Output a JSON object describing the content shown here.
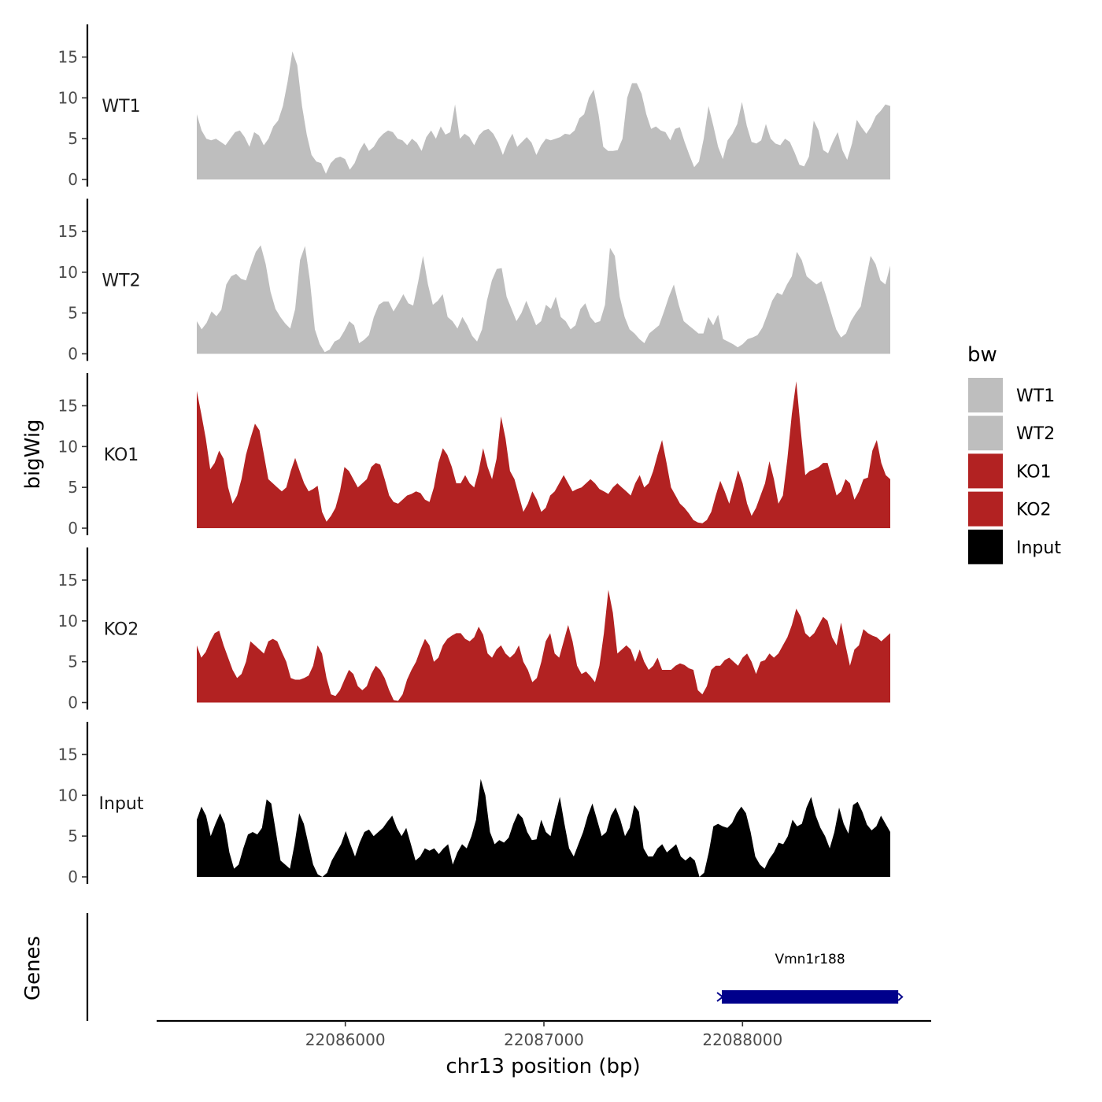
{
  "chart_data": {
    "type": "area",
    "chromosome": "chr13",
    "xlabel": "chr13 position (bp)",
    "ylabel": "bigWig",
    "gene_panel_label": "Genes",
    "xlim": [
      22085050,
      22088950
    ],
    "x_range_data": [
      22085500,
      22088800
    ],
    "x_ticks": [
      22086000,
      22087000,
      22088000
    ],
    "x_tick_labels": [
      "22086000",
      "22087000",
      "22088000"
    ],
    "ylim": [
      0,
      19
    ],
    "y_ticks": [
      0,
      5,
      10,
      15
    ],
    "y_tick_labels": [
      "0",
      "5",
      "10",
      "15"
    ],
    "legend": {
      "title": "bw",
      "position": "right"
    },
    "colors": {
      "WT1": "#bebebe",
      "WT2": "#bebebe",
      "KO1": "#b22222",
      "KO2": "#b22222",
      "Input": "#000000"
    },
    "series": [
      {
        "name": "WT1",
        "label": "WT1",
        "color": "#bebebe",
        "values": [
          8,
          6,
          5,
          4.8,
          5,
          4.6,
          4.2,
          5,
          5.8,
          6,
          5.2,
          4,
          5.8,
          5.4,
          4.2,
          5,
          6.5,
          7.2,
          9,
          12,
          15.7,
          14,
          9,
          5.5,
          3,
          2.2,
          2,
          0.7,
          2,
          2.6,
          2.8,
          2.5,
          1.2,
          2,
          3.5,
          4.5,
          3.5,
          4,
          5,
          5.6,
          6,
          5.8,
          5,
          4.8,
          4.2,
          5,
          4.5,
          3.5,
          5.2,
          6,
          5,
          6.5,
          5.5,
          5.8,
          9.2,
          5,
          5.6,
          5.2,
          4.2,
          5.4,
          6,
          6.2,
          5.6,
          4.5,
          3,
          4.5,
          5.6,
          4,
          4.6,
          5.2,
          4.5,
          3,
          4.2,
          5,
          4.8,
          5,
          5.2,
          5.6,
          5.5,
          6,
          7.5,
          8,
          10,
          11,
          8,
          4,
          3.5,
          3.5,
          3.6,
          5,
          10,
          11.8,
          11.8,
          10.5,
          8,
          6.2,
          6.5,
          6,
          5.8,
          4.8,
          6.2,
          6.4,
          4.6,
          3,
          1.5,
          2.2,
          5,
          9,
          6.6,
          4,
          2.5,
          4.8,
          5.6,
          6.8,
          9.5,
          6.6,
          4.6,
          4.4,
          4.8,
          6.8,
          5,
          4.4,
          4.2,
          5,
          4.6,
          3.3,
          1.8,
          1.6,
          2.8,
          7.2,
          6,
          3.6,
          3.2,
          4.6,
          5.8,
          3.6,
          2.4,
          4.4,
          7.3,
          6.4,
          5.6,
          6.5,
          7.8,
          8.4,
          9.2,
          9
        ]
      },
      {
        "name": "WT2",
        "label": "WT2",
        "color": "#bebebe",
        "values": [
          4,
          3,
          3.8,
          5.2,
          4.6,
          5.4,
          8.5,
          9.5,
          9.8,
          9.2,
          9,
          10.8,
          12.5,
          13.3,
          11,
          7.6,
          5.5,
          4.5,
          3.7,
          3.1,
          5.5,
          11.5,
          13.2,
          9,
          3,
          1.2,
          0.2,
          0.5,
          1.5,
          1.8,
          2.8,
          4,
          3.5,
          1.3,
          1.7,
          2.3,
          4.5,
          6,
          6.4,
          6.4,
          5.2,
          6.2,
          7.3,
          6.2,
          5.9,
          8.8,
          12,
          8.5,
          6,
          6.5,
          7.3,
          4.5,
          4,
          3.1,
          4.5,
          3.5,
          2.2,
          1.5,
          3,
          6.5,
          9,
          10.4,
          10.5,
          7,
          5.5,
          4,
          5,
          6.5,
          5,
          3.5,
          4,
          6,
          5.5,
          7,
          4.5,
          4,
          3,
          3.5,
          5.5,
          6.2,
          4.5,
          3.8,
          4,
          6,
          13,
          12,
          7,
          4.5,
          3,
          2.5,
          1.8,
          1.3,
          2.5,
          3,
          3.5,
          5.2,
          7,
          8.5,
          6,
          4,
          3.5,
          3,
          2.5,
          2.5,
          4.5,
          3.5,
          4.8,
          1.8,
          1.5,
          1.2,
          0.8,
          1.2,
          1.8,
          2,
          2.3,
          3.2,
          4.8,
          6.5,
          7.5,
          7.2,
          8.5,
          9.5,
          12.5,
          11.5,
          9.5,
          9,
          8.5,
          8.9,
          7,
          5,
          3,
          2,
          2.5,
          4,
          5,
          5.8,
          9,
          12,
          11,
          9,
          8.5,
          10.8
        ]
      },
      {
        "name": "KO1",
        "label": "KO1",
        "color": "#b22222",
        "values": [
          16.8,
          14,
          11,
          7.2,
          8,
          9.5,
          8.5,
          5,
          3,
          4,
          6,
          9,
          11,
          12.8,
          12,
          9,
          6,
          5.5,
          5,
          4.5,
          5,
          7,
          8.6,
          7,
          5.5,
          4.5,
          4.8,
          5.2,
          2,
          0.8,
          1.5,
          2.5,
          4.5,
          7.5,
          7,
          6,
          5,
          5.5,
          6,
          7.5,
          8,
          7.8,
          6,
          4,
          3.2,
          3,
          3.5,
          4,
          4.2,
          4.5,
          4.3,
          3.5,
          3.2,
          5,
          8,
          9.8,
          9,
          7.5,
          5.5,
          5.5,
          6.5,
          5.5,
          5,
          7,
          9.8,
          7.5,
          6,
          8.5,
          13.7,
          11,
          7,
          6,
          4,
          2,
          3,
          4.5,
          3.5,
          2,
          2.5,
          4,
          4.5,
          5.5,
          6.5,
          5.5,
          4.5,
          4.8,
          5,
          5.5,
          6,
          5.5,
          4.8,
          4.5,
          4.2,
          5,
          5.5,
          5,
          4.5,
          4,
          5.5,
          6.5,
          5,
          5.5,
          7,
          9,
          10.8,
          8,
          5,
          4,
          3,
          2.5,
          1.8,
          1,
          0.7,
          0.6,
          1,
          2,
          4,
          5.8,
          4.5,
          3,
          5,
          7.1,
          5.5,
          3,
          1.5,
          2.5,
          4,
          5.5,
          8.2,
          6,
          3,
          4,
          8.5,
          14,
          18,
          12,
          6.5,
          7,
          7.2,
          7.5,
          8,
          8,
          6,
          4,
          4.5,
          6,
          5.5,
          3.5,
          4.5,
          6,
          6.2,
          9.5,
          10.8,
          8,
          6.5,
          6
        ]
      },
      {
        "name": "KO2",
        "label": "KO2",
        "color": "#b22222",
        "values": [
          7,
          5.5,
          6.2,
          7.5,
          8.5,
          8.8,
          7,
          5.5,
          4,
          3,
          3.5,
          5,
          7.5,
          7,
          6.5,
          6,
          7.5,
          7.8,
          7.5,
          6.2,
          5,
          3,
          2.8,
          2.8,
          3,
          3.3,
          4.5,
          7,
          6,
          3,
          1,
          0.8,
          1.5,
          2.8,
          4,
          3.5,
          2,
          1.5,
          2,
          3.5,
          4.5,
          4,
          3,
          1.5,
          0.3,
          0.2,
          1,
          2.8,
          4,
          5,
          6.5,
          7.8,
          7,
          5,
          5.5,
          7,
          7.8,
          8.2,
          8.5,
          8.5,
          7.8,
          7.5,
          8,
          9.3,
          8.3,
          6,
          5.5,
          6.5,
          7,
          6,
          5.5,
          6,
          7,
          5,
          4,
          2.5,
          3,
          5,
          7.5,
          8.5,
          6,
          5.5,
          7.5,
          9.5,
          7.5,
          4.5,
          3.5,
          3.8,
          3.2,
          2.5,
          4.5,
          8.5,
          13.8,
          11,
          6,
          6.5,
          7,
          6.5,
          5,
          6.5,
          5,
          4,
          4.5,
          5.5,
          4,
          4,
          4,
          4.5,
          4.8,
          4.6,
          4.2,
          4,
          1.5,
          1,
          2,
          4,
          4.5,
          4.5,
          5.2,
          5.5,
          5,
          4.5,
          5.5,
          6,
          5,
          3.5,
          5,
          5.2,
          6,
          5.5,
          6,
          7,
          8,
          9.5,
          11.5,
          10.5,
          8.5,
          8,
          8.5,
          9.5,
          10.5,
          10,
          8,
          7,
          9.8,
          7,
          4.5,
          6.5,
          7,
          9,
          8.5,
          8.2,
          8,
          7.5,
          8,
          8.5
        ]
      },
      {
        "name": "Input",
        "label": "Input",
        "color": "#000000",
        "values": [
          7,
          8.6,
          7.5,
          5,
          6.5,
          7.8,
          6.5,
          3,
          1,
          1.5,
          3.5,
          5.2,
          5.5,
          5.2,
          6,
          9.5,
          9,
          5.5,
          2,
          1.5,
          1,
          4,
          7.8,
          6.5,
          4,
          1.5,
          0.3,
          0,
          0.5,
          2,
          3,
          4,
          5.6,
          4,
          2.5,
          4.2,
          5.5,
          5.8,
          5,
          5.5,
          6,
          6.8,
          7.5,
          6,
          5,
          6,
          4,
          2,
          2.5,
          3.5,
          3.2,
          3.5,
          2.8,
          3.5,
          4,
          1.5,
          3,
          4,
          3.5,
          5,
          7,
          12,
          10,
          5.5,
          4,
          4.5,
          4.2,
          4.8,
          6.5,
          7.8,
          7.2,
          5.5,
          4.5,
          4.6,
          7,
          5.5,
          5,
          7.5,
          9.8,
          6.5,
          3.5,
          2.5,
          4,
          5.5,
          7.5,
          9,
          7,
          5,
          5.5,
          7.5,
          8.5,
          7,
          5,
          6,
          8.8,
          8,
          3.5,
          2.5,
          2.5,
          3.5,
          4,
          3,
          3.5,
          4,
          2.5,
          2,
          2.5,
          2,
          0,
          0.5,
          3,
          6.2,
          6.5,
          6.2,
          6,
          6.6,
          7.8,
          8.6,
          7.8,
          5.5,
          2.5,
          1.5,
          1,
          2.2,
          3,
          4.2,
          4,
          5,
          7,
          6.2,
          6.5,
          8.5,
          9.8,
          7.5,
          6,
          5,
          3.5,
          5.5,
          8.5,
          6.5,
          5.3,
          8.8,
          9.2,
          8,
          6.4,
          5.7,
          6.2,
          7.5,
          6.5,
          5.5
        ]
      }
    ],
    "genes": [
      {
        "name": "Vmn1r188",
        "start": 22087880,
        "end": 22088800,
        "strand": "-",
        "color": "#00008b"
      }
    ]
  }
}
